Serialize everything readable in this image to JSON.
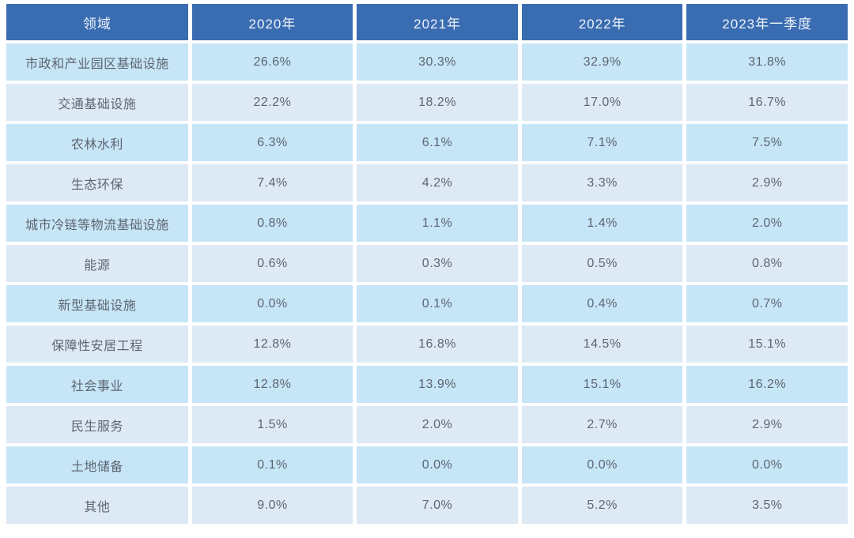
{
  "table": {
    "columns": [
      "领域",
      "2020年",
      "2021年",
      "2022年",
      "2023年一季度"
    ],
    "rows": [
      {
        "label": "市政和产业园区基础设施",
        "values": [
          "26.6%",
          "30.3%",
          "32.9%",
          "31.8%"
        ]
      },
      {
        "label": "交通基础设施",
        "values": [
          "22.2%",
          "18.2%",
          "17.0%",
          "16.7%"
        ]
      },
      {
        "label": "农林水利",
        "values": [
          "6.3%",
          "6.1%",
          "7.1%",
          "7.5%"
        ]
      },
      {
        "label": "生态环保",
        "values": [
          "7.4%",
          "4.2%",
          "3.3%",
          "2.9%"
        ]
      },
      {
        "label": "城市冷链等物流基础设施",
        "values": [
          "0.8%",
          "1.1%",
          "1.4%",
          "2.0%"
        ]
      },
      {
        "label": "能源",
        "values": [
          "0.6%",
          "0.3%",
          "0.5%",
          "0.8%"
        ]
      },
      {
        "label": "新型基础设施",
        "values": [
          "0.0%",
          "0.1%",
          "0.4%",
          "0.7%"
        ]
      },
      {
        "label": "保障性安居工程",
        "values": [
          "12.8%",
          "16.8%",
          "14.5%",
          "15.1%"
        ]
      },
      {
        "label": "社会事业",
        "values": [
          "12.8%",
          "13.9%",
          "15.1%",
          "16.2%"
        ]
      },
      {
        "label": "民生服务",
        "values": [
          "1.5%",
          "2.0%",
          "2.7%",
          "2.9%"
        ]
      },
      {
        "label": "土地储备",
        "values": [
          "0.1%",
          "0.0%",
          "0.0%",
          "0.0%"
        ]
      },
      {
        "label": "其他",
        "values": [
          "9.0%",
          "7.0%",
          "5.2%",
          "3.5%"
        ]
      }
    ]
  },
  "colors": {
    "header_bg": "#3a6cb1",
    "header_text": "#edf4fb",
    "row_odd_bg": "#c6e5f7",
    "row_even_bg": "#dde9f5",
    "body_text": "#5c6670"
  },
  "chart_data": {
    "type": "table",
    "title": "",
    "xlabel": "领域",
    "unit": "%",
    "categories": [
      "2020年",
      "2021年",
      "2022年",
      "2023年一季度"
    ],
    "series": [
      {
        "name": "市政和产业园区基础设施",
        "values": [
          26.6,
          30.3,
          32.9,
          31.8
        ]
      },
      {
        "name": "交通基础设施",
        "values": [
          22.2,
          18.2,
          17.0,
          16.7
        ]
      },
      {
        "name": "农林水利",
        "values": [
          6.3,
          6.1,
          7.1,
          7.5
        ]
      },
      {
        "name": "生态环保",
        "values": [
          7.4,
          4.2,
          3.3,
          2.9
        ]
      },
      {
        "name": "城市冷链等物流基础设施",
        "values": [
          0.8,
          1.1,
          1.4,
          2.0
        ]
      },
      {
        "name": "能源",
        "values": [
          0.6,
          0.3,
          0.5,
          0.8
        ]
      },
      {
        "name": "新型基础设施",
        "values": [
          0.0,
          0.1,
          0.4,
          0.7
        ]
      },
      {
        "name": "保障性安居工程",
        "values": [
          12.8,
          16.8,
          14.5,
          15.1
        ]
      },
      {
        "name": "社会事业",
        "values": [
          12.8,
          13.9,
          15.1,
          16.2
        ]
      },
      {
        "name": "民生服务",
        "values": [
          1.5,
          2.0,
          2.7,
          2.9
        ]
      },
      {
        "name": "土地储备",
        "values": [
          0.1,
          0.0,
          0.0,
          0.0
        ]
      },
      {
        "name": "其他",
        "values": [
          9.0,
          7.0,
          5.2,
          3.5
        ]
      }
    ]
  }
}
